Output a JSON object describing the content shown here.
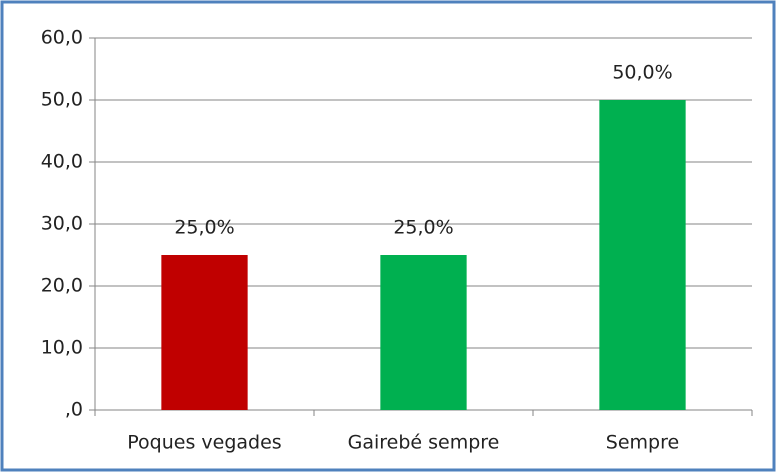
{
  "chart_data": {
    "type": "bar",
    "categories": [
      "Poques vegades",
      "Gairebé sempre",
      "Sempre"
    ],
    "values": [
      25,
      25,
      50
    ],
    "value_labels": [
      "25,0%",
      "25,0%",
      "50,0%"
    ],
    "colors": [
      "#c00000",
      "#00b050",
      "#00b050"
    ],
    "ylim": [
      0,
      60
    ],
    "yticks": [
      {
        "value": 0,
        "label": ",0"
      },
      {
        "value": 10,
        "label": "10,0"
      },
      {
        "value": 20,
        "label": "20,0"
      },
      {
        "value": 30,
        "label": "30,0"
      },
      {
        "value": 40,
        "label": "40,0"
      },
      {
        "value": 50,
        "label": "50,0"
      },
      {
        "value": 60,
        "label": "60,0"
      }
    ],
    "grid": true
  }
}
